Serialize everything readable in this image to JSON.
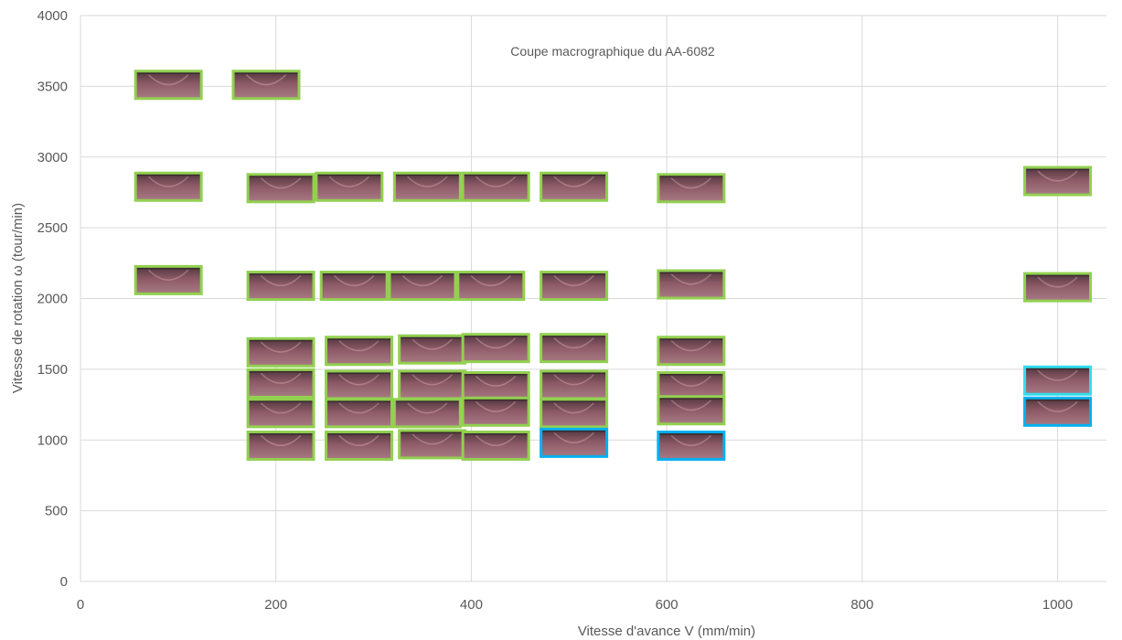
{
  "chart_data": {
    "type": "scatter",
    "title": "Coupe macrographique du AA-6082",
    "xlabel": "Vitesse d'avance V (mm/min)",
    "ylabel": "Vitesse de rotation ω (tour/min)",
    "xlim": [
      0,
      1050
    ],
    "ylim": [
      0,
      4000
    ],
    "x_ticks": [
      "0",
      "200",
      "400",
      "600",
      "800",
      "1000"
    ],
    "y_ticks": [
      "0",
      "500",
      "1000",
      "1500",
      "2000",
      "2500",
      "3000",
      "3500",
      "4000"
    ],
    "grid": true,
    "marker": "macrograph-thumbnail",
    "colors": {
      "green": "#92d050",
      "blue": "#00b0f0",
      "cyan": "#33ddee",
      "grid": "#d9d9d9",
      "text": "#595959",
      "specimen_face": "#8c5a66",
      "specimen_dark": "#3a2a2e",
      "specimen_light": "#d6a8b2"
    },
    "points": [
      {
        "x": 90,
        "y": 3510,
        "frame": "green"
      },
      {
        "x": 190,
        "y": 3510,
        "frame": "green"
      },
      {
        "x": 90,
        "y": 2790,
        "frame": "green"
      },
      {
        "x": 205,
        "y": 2780,
        "frame": "green"
      },
      {
        "x": 275,
        "y": 2790,
        "frame": "green"
      },
      {
        "x": 355,
        "y": 2790,
        "frame": "green"
      },
      {
        "x": 425,
        "y": 2790,
        "frame": "green"
      },
      {
        "x": 505,
        "y": 2790,
        "frame": "green"
      },
      {
        "x": 625,
        "y": 2780,
        "frame": "green"
      },
      {
        "x": 1000,
        "y": 2830,
        "frame": "green"
      },
      {
        "x": 90,
        "y": 2130,
        "frame": "green"
      },
      {
        "x": 205,
        "y": 2090,
        "frame": "green"
      },
      {
        "x": 280,
        "y": 2090,
        "frame": "green"
      },
      {
        "x": 350,
        "y": 2090,
        "frame": "green"
      },
      {
        "x": 420,
        "y": 2090,
        "frame": "green"
      },
      {
        "x": 505,
        "y": 2090,
        "frame": "green"
      },
      {
        "x": 625,
        "y": 2100,
        "frame": "green"
      },
      {
        "x": 1000,
        "y": 2080,
        "frame": "green"
      },
      {
        "x": 205,
        "y": 1620,
        "frame": "green"
      },
      {
        "x": 285,
        "y": 1630,
        "frame": "green"
      },
      {
        "x": 360,
        "y": 1640,
        "frame": "green"
      },
      {
        "x": 425,
        "y": 1650,
        "frame": "green"
      },
      {
        "x": 505,
        "y": 1650,
        "frame": "green"
      },
      {
        "x": 625,
        "y": 1630,
        "frame": "green"
      },
      {
        "x": 205,
        "y": 1400,
        "frame": "green"
      },
      {
        "x": 285,
        "y": 1390,
        "frame": "green"
      },
      {
        "x": 360,
        "y": 1390,
        "frame": "green"
      },
      {
        "x": 425,
        "y": 1380,
        "frame": "green"
      },
      {
        "x": 505,
        "y": 1390,
        "frame": "green"
      },
      {
        "x": 625,
        "y": 1380,
        "frame": "green"
      },
      {
        "x": 1000,
        "y": 1420,
        "frame": "cyan"
      },
      {
        "x": 205,
        "y": 1190,
        "frame": "green"
      },
      {
        "x": 285,
        "y": 1190,
        "frame": "green"
      },
      {
        "x": 355,
        "y": 1190,
        "frame": "green"
      },
      {
        "x": 425,
        "y": 1200,
        "frame": "green"
      },
      {
        "x": 505,
        "y": 1190,
        "frame": "green"
      },
      {
        "x": 625,
        "y": 1210,
        "frame": "green"
      },
      {
        "x": 1000,
        "y": 1200,
        "frame": "blue"
      },
      {
        "x": 205,
        "y": 960,
        "frame": "green"
      },
      {
        "x": 285,
        "y": 960,
        "frame": "green"
      },
      {
        "x": 360,
        "y": 970,
        "frame": "green"
      },
      {
        "x": 425,
        "y": 960,
        "frame": "green"
      },
      {
        "x": 505,
        "y": 980,
        "frame": "blue"
      },
      {
        "x": 625,
        "y": 960,
        "frame": "blue"
      }
    ]
  }
}
